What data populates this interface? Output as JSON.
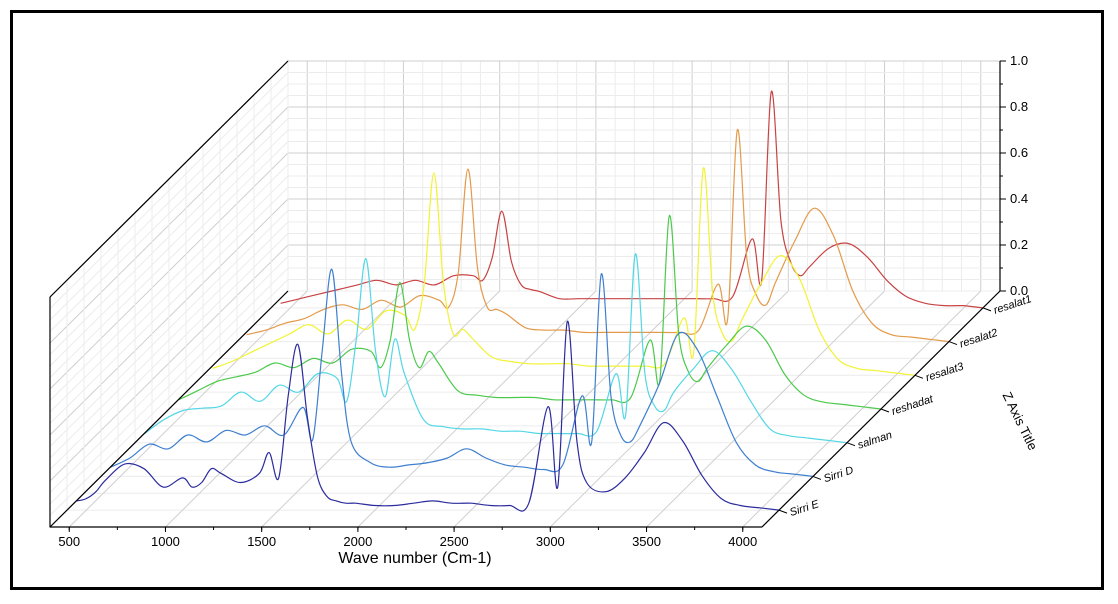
{
  "chart_data": {
    "type": "line",
    "variant": "3d-waterfall",
    "xlabel": "Wave number (Cm-1)",
    "ylabel": "",
    "zlabel": "Z Axis Title",
    "xlim": [
      400,
      4100
    ],
    "ylim": [
      0,
      1.0
    ],
    "x_ticks": [
      "500",
      "1000",
      "1500",
      "2000",
      "2500",
      "3000",
      "3500",
      "4000"
    ],
    "y_ticks": [
      "0.0",
      "0.2",
      "0.4",
      "0.6",
      "0.8",
      "1.0"
    ],
    "grid": true,
    "series_order_front_to_back": [
      "Sirri E",
      "Sirri D",
      "salman",
      "reshadat",
      "resalat3",
      "resalat2",
      "resalat1"
    ],
    "series": [
      {
        "name": "Sirri E",
        "label": "Sirri E",
        "color": "#2b2b9e",
        "x": [
          450,
          500,
          550,
          600,
          700,
          800,
          900,
          1000,
          1050,
          1100,
          1150,
          1200,
          1300,
          1400,
          1450,
          1500,
          1550,
          1600,
          1650,
          1700,
          1750,
          1800,
          1850,
          1900,
          2000,
          2100,
          2200,
          2300,
          2400,
          2500,
          2600,
          2700,
          2800,
          2900,
          2950,
          3000,
          3050,
          3100,
          3200,
          3300,
          3400,
          3500,
          3600,
          3700,
          3800,
          3900,
          4000
        ],
        "y": [
          0.04,
          0.05,
          0.08,
          0.13,
          0.2,
          0.18,
          0.1,
          0.14,
          0.1,
          0.12,
          0.18,
          0.16,
          0.12,
          0.16,
          0.25,
          0.14,
          0.5,
          0.72,
          0.4,
          0.15,
          0.06,
          0.04,
          0.03,
          0.03,
          0.02,
          0.02,
          0.03,
          0.04,
          0.03,
          0.03,
          0.02,
          0.02,
          0.03,
          0.45,
          0.1,
          0.82,
          0.3,
          0.12,
          0.08,
          0.14,
          0.25,
          0.38,
          0.3,
          0.15,
          0.05,
          0.02,
          0.01
        ]
      },
      {
        "name": "Sirri D",
        "label": "Sirri D",
        "color": "#3e7fd0",
        "x": [
          450,
          550,
          650,
          750,
          850,
          950,
          1050,
          1150,
          1250,
          1350,
          1450,
          1500,
          1550,
          1600,
          1650,
          1700,
          1800,
          1900,
          2000,
          2100,
          2200,
          2300,
          2400,
          2500,
          2600,
          2700,
          2800,
          2900,
          2950,
          3000,
          3050,
          3100,
          3150,
          3200,
          3300,
          3400,
          3500,
          3600,
          3700,
          3800,
          3900,
          4000
        ],
        "y": [
          0.04,
          0.08,
          0.14,
          0.12,
          0.18,
          0.15,
          0.2,
          0.18,
          0.22,
          0.18,
          0.3,
          0.16,
          0.55,
          0.9,
          0.45,
          0.15,
          0.06,
          0.04,
          0.05,
          0.06,
          0.08,
          0.12,
          0.08,
          0.05,
          0.04,
          0.03,
          0.05,
          0.35,
          0.15,
          0.88,
          0.35,
          0.18,
          0.15,
          0.22,
          0.4,
          0.62,
          0.55,
          0.35,
          0.15,
          0.05,
          0.02,
          0.01
        ]
      },
      {
        "name": "salman",
        "label": "salman",
        "color": "#53d7e6",
        "x": [
          450,
          550,
          650,
          750,
          850,
          950,
          1050,
          1150,
          1250,
          1350,
          1450,
          1500,
          1550,
          1600,
          1650,
          1700,
          1750,
          1800,
          1900,
          2000,
          2100,
          2200,
          2300,
          2400,
          2500,
          2600,
          2700,
          2800,
          2900,
          2950,
          3000,
          3050,
          3100,
          3150,
          3200,
          3300,
          3400,
          3500,
          3600,
          3700,
          3800,
          3900,
          4000
        ],
        "y": [
          0.04,
          0.1,
          0.14,
          0.15,
          0.16,
          0.22,
          0.18,
          0.25,
          0.22,
          0.3,
          0.28,
          0.18,
          0.45,
          0.8,
          0.4,
          0.2,
          0.45,
          0.3,
          0.1,
          0.07,
          0.06,
          0.06,
          0.05,
          0.05,
          0.04,
          0.04,
          0.04,
          0.05,
          0.3,
          0.12,
          0.82,
          0.3,
          0.16,
          0.14,
          0.22,
          0.32,
          0.4,
          0.32,
          0.18,
          0.06,
          0.03,
          0.02,
          0.01
        ]
      },
      {
        "name": "reshadat",
        "label": "reshadat",
        "color": "#4cc94c",
        "x": [
          450,
          550,
          650,
          750,
          850,
          950,
          1050,
          1150,
          1250,
          1350,
          1450,
          1500,
          1550,
          1600,
          1650,
          1700,
          1750,
          1800,
          1900,
          2000,
          2100,
          2200,
          2300,
          2400,
          2500,
          2600,
          2700,
          2800,
          2900,
          2950,
          3000,
          3050,
          3100,
          3150,
          3200,
          3300,
          3400,
          3500,
          3600,
          3700,
          3800,
          3900,
          4000
        ],
        "y": [
          0.04,
          0.08,
          0.12,
          0.14,
          0.16,
          0.2,
          0.18,
          0.22,
          0.2,
          0.26,
          0.25,
          0.18,
          0.3,
          0.55,
          0.3,
          0.18,
          0.25,
          0.2,
          0.08,
          0.06,
          0.05,
          0.05,
          0.05,
          0.04,
          0.04,
          0.04,
          0.04,
          0.05,
          0.3,
          0.12,
          0.84,
          0.32,
          0.16,
          0.12,
          0.18,
          0.28,
          0.36,
          0.3,
          0.15,
          0.06,
          0.03,
          0.02,
          0.01
        ]
      },
      {
        "name": "resalat3",
        "label": "resalat3",
        "color": "#f2f233",
        "x": [
          450,
          550,
          650,
          750,
          850,
          950,
          1050,
          1150,
          1250,
          1350,
          1450,
          1500,
          1550,
          1600,
          1650,
          1700,
          1750,
          1800,
          1900,
          2000,
          2100,
          2200,
          2300,
          2400,
          2500,
          2600,
          2700,
          2800,
          2900,
          2950,
          3000,
          3050,
          3100,
          3150,
          3200,
          3300,
          3400,
          3500,
          3600,
          3700,
          3800,
          3900,
          4000
        ],
        "y": [
          0.03,
          0.06,
          0.1,
          0.14,
          0.18,
          0.22,
          0.18,
          0.24,
          0.2,
          0.28,
          0.26,
          0.2,
          0.4,
          0.88,
          0.4,
          0.18,
          0.2,
          0.16,
          0.08,
          0.06,
          0.05,
          0.05,
          0.05,
          0.04,
          0.04,
          0.04,
          0.04,
          0.05,
          0.25,
          0.1,
          0.9,
          0.35,
          0.18,
          0.15,
          0.24,
          0.4,
          0.52,
          0.42,
          0.2,
          0.07,
          0.03,
          0.02,
          0.01
        ]
      },
      {
        "name": "resalat2",
        "label": "resalat2",
        "color": "#e39a4a",
        "x": [
          450,
          550,
          650,
          750,
          850,
          950,
          1050,
          1150,
          1250,
          1350,
          1450,
          1500,
          1550,
          1600,
          1650,
          1700,
          1750,
          1800,
          1900,
          2000,
          2100,
          2200,
          2300,
          2400,
          2500,
          2600,
          2700,
          2800,
          2900,
          2950,
          3000,
          3050,
          3100,
          3150,
          3200,
          3300,
          3400,
          3500,
          3600,
          3700,
          3800,
          3900,
          4000
        ],
        "y": [
          0.03,
          0.05,
          0.08,
          0.1,
          0.14,
          0.16,
          0.14,
          0.18,
          0.15,
          0.2,
          0.18,
          0.15,
          0.3,
          0.75,
          0.32,
          0.15,
          0.14,
          0.12,
          0.06,
          0.05,
          0.05,
          0.04,
          0.04,
          0.04,
          0.04,
          0.04,
          0.04,
          0.05,
          0.25,
          0.1,
          0.92,
          0.36,
          0.2,
          0.16,
          0.26,
          0.44,
          0.58,
          0.46,
          0.22,
          0.08,
          0.03,
          0.02,
          0.01
        ]
      },
      {
        "name": "resalat1",
        "label": "resalat1",
        "color": "#c84343",
        "x": [
          450,
          550,
          650,
          750,
          850,
          950,
          1050,
          1150,
          1250,
          1350,
          1450,
          1500,
          1550,
          1600,
          1650,
          1700,
          1750,
          1800,
          1900,
          2000,
          2100,
          2200,
          2300,
          2400,
          2500,
          2600,
          2700,
          2800,
          2900,
          2950,
          3000,
          3050,
          3100,
          3150,
          3200,
          3300,
          3400,
          3500,
          3600,
          3700,
          3800,
          3900,
          4000
        ],
        "y": [
          0.02,
          0.04,
          0.06,
          0.08,
          0.1,
          0.12,
          0.1,
          0.12,
          0.1,
          0.14,
          0.14,
          0.12,
          0.22,
          0.42,
          0.2,
          0.1,
          0.08,
          0.07,
          0.04,
          0.04,
          0.04,
          0.04,
          0.04,
          0.04,
          0.04,
          0.04,
          0.04,
          0.05,
          0.3,
          0.12,
          0.94,
          0.38,
          0.2,
          0.14,
          0.18,
          0.26,
          0.28,
          0.22,
          0.12,
          0.05,
          0.02,
          0.01,
          0.01
        ]
      }
    ]
  }
}
